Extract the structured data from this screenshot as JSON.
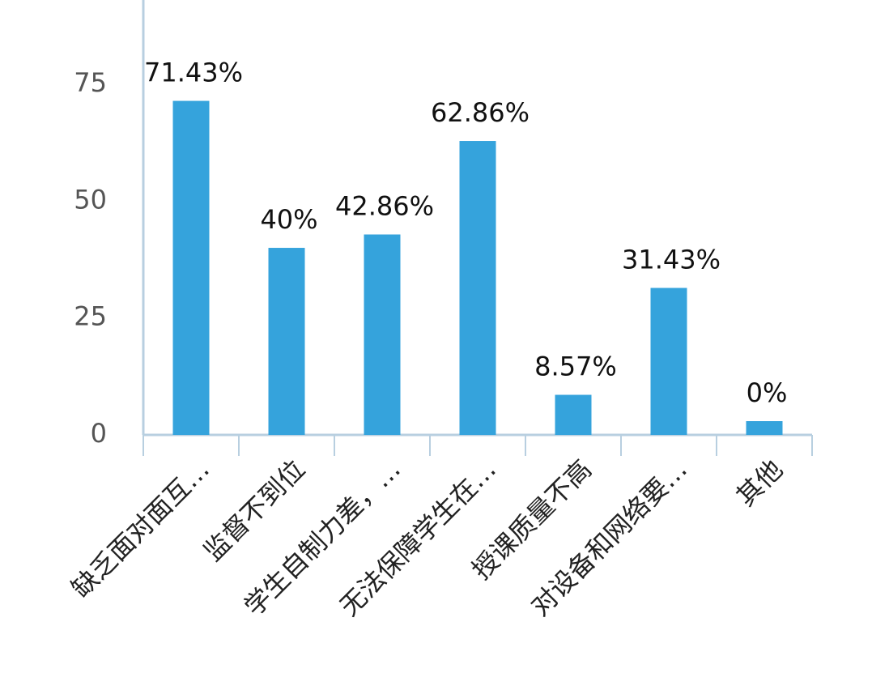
{
  "chart_data": {
    "type": "bar",
    "categories": [
      "缺乏面对面互…",
      "监督不到位",
      "学生自制力差，…",
      "无法保障学生在…",
      "授课质量不高",
      "对设备和网络要…",
      "其他"
    ],
    "values": [
      71.43,
      40,
      42.86,
      62.86,
      8.57,
      31.43,
      0
    ],
    "value_labels": [
      "71.43%",
      "40%",
      "42.86%",
      "62.86%",
      "8.57%",
      "31.43%",
      "0%"
    ],
    "color": "#35a3dc",
    "ylim": [
      0,
      93
    ],
    "yticks": [
      0,
      25,
      50,
      75
    ],
    "grid": false
  }
}
